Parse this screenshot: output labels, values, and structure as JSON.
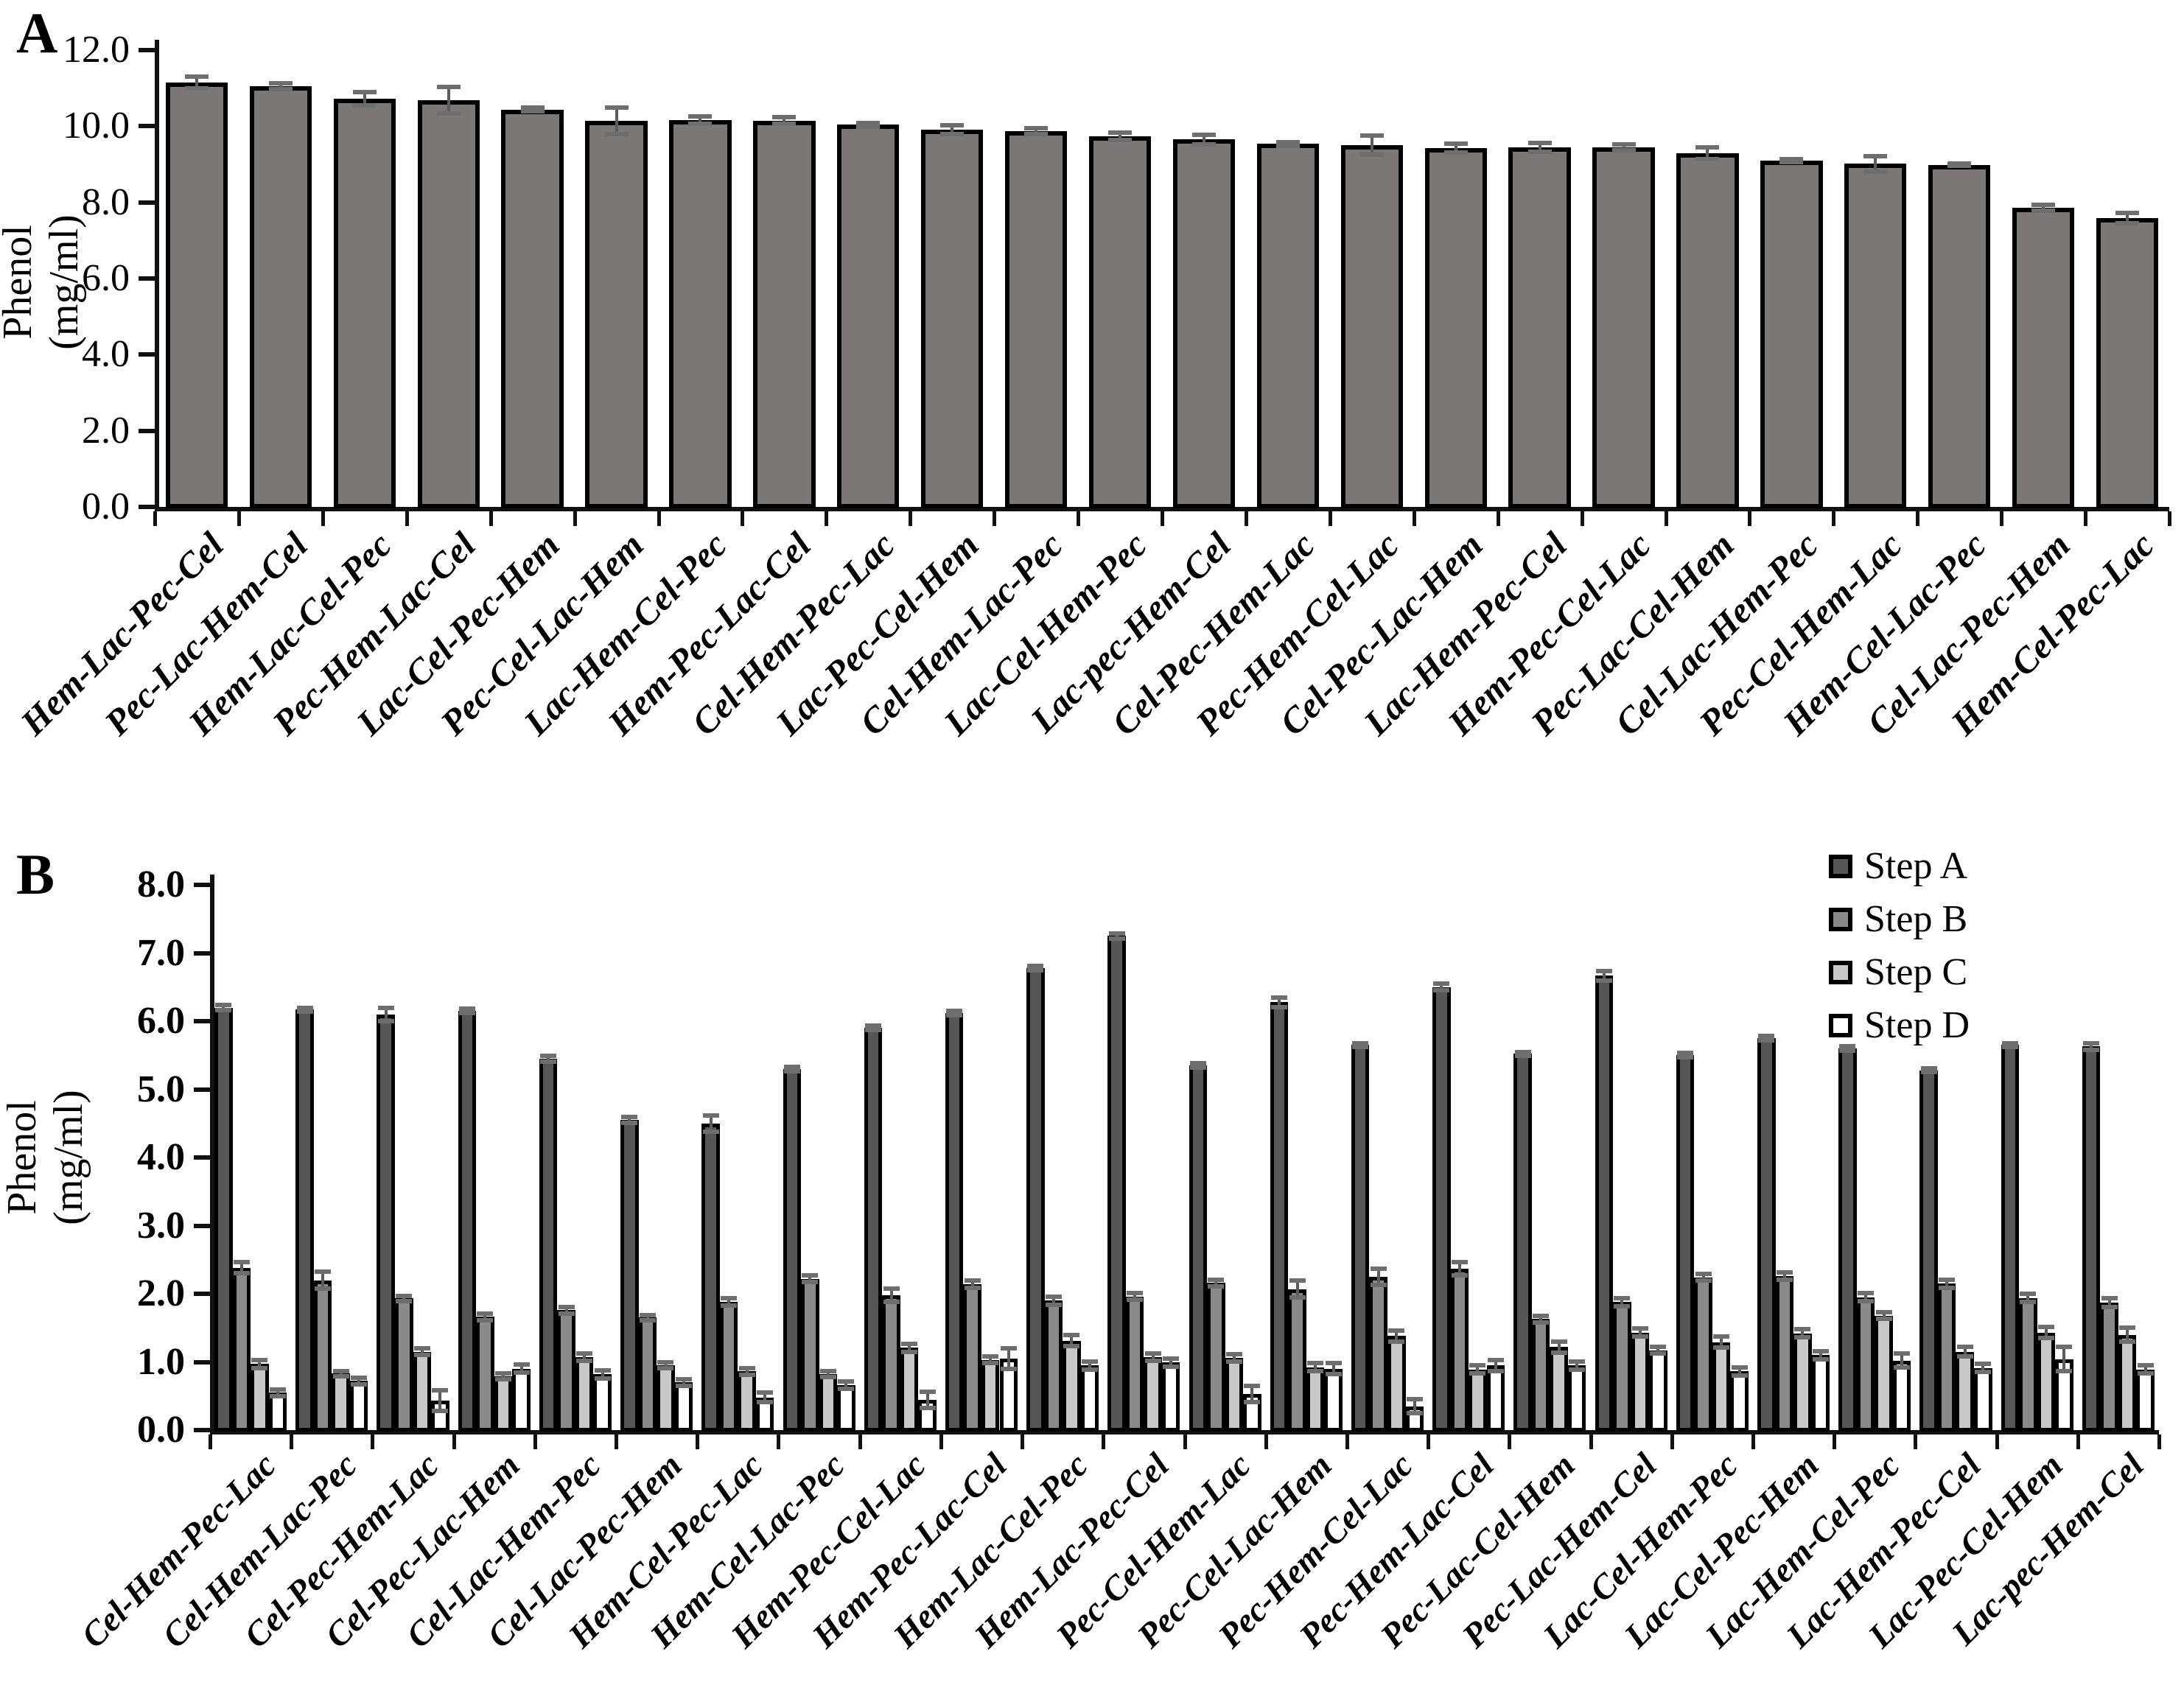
{
  "figure": {
    "panel_a_letter": "A",
    "panel_b_letter": "B",
    "ylabel_line1": "Phenol",
    "ylabel_line2": "(mg/ml)"
  },
  "chart_data": [
    {
      "type": "bar",
      "panel": "A",
      "title": "",
      "xlabel": "",
      "ylabel": "Phenol (mg/ml)",
      "ylim": [
        0,
        12
      ],
      "ytick_labels": [
        "0.0",
        "2.0",
        "4.0",
        "6.0",
        "8.0",
        "10.0",
        "12.0"
      ],
      "grid": false,
      "bar_color": "#7b7774",
      "error_color": "#5c5c5c",
      "categories": [
        "Hem-Lac-Pec-Cel",
        "Pec-Lac-Hem-Cel",
        "Hem-Lac-Cel-Pec",
        "Pec-Hem-Lac-Cel",
        "Lac-Cel-Pec-Hem",
        "Pec-Cel-Lac-Hem",
        "Lac-Hem-Cel-Pec",
        "Hem-Pec-Lac-Cel",
        "Cel-Hem-Pec-Lac",
        "Lac-Pec-Cel-Hem",
        "Cel-Hem-Lac-Pec",
        "Lac-Cel-Hem-Pec",
        "Lac-pec-Hem-Cel",
        "Cel-Pec-Hem-Lac",
        "Pec-Hem-Cel-Lac",
        "Cel-Pec-Lac-Hem",
        "Lac-Hem-Pec-Cel",
        "Hem-Pec-Cel-Lac",
        "Pec-Lac-Cel-Hem",
        "Cel-Lac-Hem-Pec",
        "Pec-Cel-Hem-Lac",
        "Hem-Cel-Lac-Pec",
        "Cel-Lac-Pec-Hem",
        "Hem-Cel-Pec-Lac"
      ],
      "values": [
        11.15,
        11.05,
        10.72,
        10.68,
        10.44,
        10.15,
        10.16,
        10.15,
        10.04,
        9.91,
        9.87,
        9.74,
        9.65,
        9.54,
        9.51,
        9.43,
        9.44,
        9.44,
        9.29,
        9.1,
        9.01,
        8.99,
        7.86,
        7.59
      ],
      "errors": [
        0.15,
        0.08,
        0.18,
        0.35,
        0.05,
        0.35,
        0.1,
        0.08,
        0.05,
        0.12,
        0.08,
        0.1,
        0.12,
        0.05,
        0.25,
        0.12,
        0.12,
        0.08,
        0.15,
        0.04,
        0.2,
        0.03,
        0.07,
        0.13
      ]
    },
    {
      "type": "bar",
      "panel": "B",
      "title": "",
      "xlabel": "",
      "ylabel": "Phenol (mg/ml)",
      "ylim": [
        0,
        8
      ],
      "ytick_labels": [
        "0.0",
        "1.0",
        "2.0",
        "3.0",
        "4.0",
        "5.0",
        "6.0",
        "7.0",
        "8.0"
      ],
      "grid": false,
      "legend_position": "top-right",
      "error_color": "#5c5c5c",
      "categories": [
        "Cel-Hem-Pec-Lac",
        "Cel-Hem-Lac-Pec",
        "Cel-Pec-Hem-Lac",
        "Cel-Pec-Lac-Hem",
        "Cel-Lac-Hem-Pec",
        "Cel-Lac-Pec-Hem",
        "Hem-Cel-Pec-Lac",
        "Hem-Cel-Lac-Pec",
        "Hem-Pec-Cel-Lac",
        "Hem-Pec-Lac-Cel",
        "Hem-Lac-Cel-Pec",
        "Hem-Lac-Pec-Cel",
        "Pec-Cel-Hem-Lac",
        "Pec-Cel-Lac-Hem",
        "Pec-Hem-Cel-Lac",
        "Pec-Hem-Lac-Cel",
        "Pec-Lac-Cel-Hem",
        "Pec-Lac-Hem-Cel",
        "Lac-Cel-Hem-Pec",
        "Lac-Cel-Pec-Hem",
        "Lac-Hem-Cel-Pec",
        "Lac-Hem-Pec-Cel",
        "Lac-Pec-Cel-Hem",
        "Lac-pec-Hem-Cel"
      ],
      "series": [
        {
          "name": "Step A",
          "color": "#565656",
          "values": [
            6.2,
            6.17,
            6.1,
            6.15,
            5.45,
            4.55,
            4.5,
            5.3,
            5.9,
            6.12,
            6.78,
            7.25,
            5.35,
            6.28,
            5.65,
            6.5,
            5.52,
            6.67,
            5.5,
            5.75,
            5.6,
            5.28,
            5.65,
            5.63
          ],
          "errors": [
            0.04,
            0.03,
            0.1,
            0.03,
            0.04,
            0.04,
            0.12,
            0.03,
            0.03,
            0.03,
            0.03,
            0.04,
            0.03,
            0.07,
            0.03,
            0.05,
            0.03,
            0.07,
            0.03,
            0.03,
            0.03,
            0.03,
            0.03,
            0.05
          ]
        },
        {
          "name": "Step B",
          "color": "#8a8a8a",
          "values": [
            2.38,
            2.2,
            1.93,
            1.66,
            1.76,
            1.65,
            1.88,
            2.22,
            1.98,
            2.14,
            1.9,
            1.96,
            2.16,
            2.07,
            2.25,
            2.37,
            1.63,
            1.88,
            2.24,
            2.26,
            1.95,
            2.15,
            1.94,
            1.87
          ],
          "errors": [
            0.08,
            0.12,
            0.04,
            0.05,
            0.05,
            0.04,
            0.05,
            0.05,
            0.1,
            0.05,
            0.06,
            0.05,
            0.05,
            0.12,
            0.12,
            0.1,
            0.05,
            0.06,
            0.05,
            0.05,
            0.06,
            0.06,
            0.06,
            0.06
          ]
        },
        {
          "name": "Step C",
          "color": "#c8c8c8",
          "values": [
            0.97,
            0.83,
            1.15,
            0.79,
            1.07,
            0.95,
            0.86,
            0.82,
            1.21,
            1.03,
            1.31,
            1.07,
            1.06,
            0.92,
            1.38,
            0.89,
            1.22,
            1.43,
            1.29,
            1.42,
            1.68,
            1.15,
            1.43,
            1.4
          ],
          "errors": [
            0.06,
            0.04,
            0.05,
            0.04,
            0.05,
            0.04,
            0.05,
            0.04,
            0.06,
            0.05,
            0.08,
            0.05,
            0.05,
            0.06,
            0.08,
            0.06,
            0.08,
            0.06,
            0.08,
            0.06,
            0.05,
            0.07,
            0.08,
            0.1
          ]
        },
        {
          "name": "Step D",
          "color": "#ffffff",
          "values": [
            0.55,
            0.72,
            0.43,
            0.9,
            0.82,
            0.7,
            0.48,
            0.66,
            0.44,
            1.05,
            0.95,
            0.99,
            0.53,
            0.9,
            0.35,
            0.95,
            0.95,
            1.17,
            0.86,
            1.1,
            1.02,
            0.91,
            1.04,
            0.89
          ],
          "errors": [
            0.05,
            0.05,
            0.15,
            0.06,
            0.06,
            0.05,
            0.07,
            0.05,
            0.12,
            0.15,
            0.06,
            0.06,
            0.12,
            0.08,
            0.1,
            0.08,
            0.06,
            0.05,
            0.06,
            0.06,
            0.1,
            0.06,
            0.18,
            0.06
          ]
        }
      ]
    }
  ]
}
